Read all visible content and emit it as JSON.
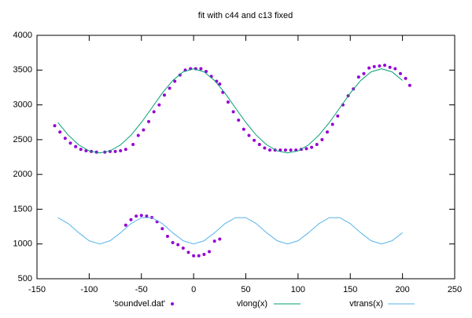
{
  "chart_data": {
    "type": "line",
    "title": "fit with c44 and c13 fixed",
    "xlim": [
      -150,
      250
    ],
    "xticks": [
      -150,
      -100,
      -50,
      0,
      50,
      100,
      150,
      200,
      250
    ],
    "ylim": [
      500,
      4000
    ],
    "yticks": [
      500,
      1000,
      1500,
      2000,
      2500,
      3000,
      3500,
      4000
    ],
    "grid": false,
    "legend": "bottom",
    "series": [
      {
        "name": "'soundvel.dat'",
        "color": "#9400d3",
        "mode": "points",
        "x": [
          -133,
          -128,
          -123,
          -118,
          -113,
          -108,
          -103,
          -98,
          -93,
          -85,
          -80,
          -75,
          -70,
          -65,
          -58,
          -53,
          -48,
          -43,
          -38,
          -33,
          -28,
          -23,
          -18,
          -13,
          -8,
          -3,
          2,
          7,
          12,
          17,
          22,
          25,
          28,
          33,
          38,
          43,
          48,
          53,
          58,
          63,
          68,
          73,
          78,
          83,
          88,
          93,
          98,
          103,
          108,
          113,
          118,
          123,
          128,
          133,
          138,
          143,
          148,
          153,
          158,
          163,
          168,
          173,
          178,
          183,
          188,
          193,
          198,
          203,
          207,
          -65,
          -60,
          -55,
          -50,
          -45,
          -40,
          -35,
          -30,
          -25,
          -20,
          -15,
          -10,
          -5,
          0,
          5,
          10,
          15,
          20,
          25
        ],
        "values": [
          2700,
          2610,
          2520,
          2450,
          2400,
          2360,
          2340,
          2330,
          2320,
          2320,
          2330,
          2330,
          2340,
          2360,
          2430,
          2560,
          2640,
          2760,
          2900,
          3000,
          3140,
          3240,
          3340,
          3430,
          3500,
          3520,
          3520,
          3520,
          3480,
          3410,
          3340,
          3300,
          3180,
          3040,
          2900,
          2780,
          2650,
          2560,
          2490,
          2430,
          2380,
          2350,
          2350,
          2350,
          2350,
          2350,
          2350,
          2360,
          2370,
          2390,
          2430,
          2500,
          2610,
          2720,
          2840,
          3000,
          3130,
          3230,
          3400,
          3450,
          3530,
          3550,
          3560,
          3570,
          3540,
          3520,
          3450,
          3380,
          3280,
          1270,
          1350,
          1400,
          1410,
          1400,
          1380,
          1320,
          1220,
          1110,
          1020,
          990,
          940,
          880,
          830,
          830,
          850,
          890,
          1040,
          1070
        ]
      },
      {
        "name": "vlong(x)",
        "color": "#009e73",
        "mode": "lines",
        "x": [
          -130,
          -120,
          -110,
          -100,
          -90,
          -80,
          -70,
          -60,
          -50,
          -40,
          -30,
          -20,
          -10,
          0,
          10,
          20,
          30,
          40,
          50,
          60,
          70,
          80,
          90,
          100,
          110,
          120,
          130,
          140,
          150,
          160,
          170,
          180,
          190,
          200
        ],
        "values": [
          2747,
          2564,
          2425,
          2338,
          2309,
          2338,
          2425,
          2564,
          2747,
          2957,
          3169,
          3351,
          3475,
          3519,
          3475,
          3351,
          3169,
          2957,
          2747,
          2564,
          2425,
          2338,
          2309,
          2338,
          2425,
          2564,
          2747,
          2957,
          3169,
          3351,
          3475,
          3519,
          3475,
          3351
        ]
      },
      {
        "name": "vtrans(x)",
        "color": "#56b4e9",
        "mode": "lines",
        "x": [
          -130,
          -120,
          -110,
          -100,
          -90,
          -80,
          -70,
          -60,
          -50,
          -40,
          -30,
          -20,
          -10,
          0,
          10,
          20,
          30,
          40,
          50,
          60,
          70,
          80,
          90,
          100,
          110,
          120,
          130,
          140,
          150,
          160,
          170,
          180,
          190,
          200
        ],
        "values": [
          1378,
          1293,
          1161,
          1046,
          1000,
          1046,
          1161,
          1293,
          1378,
          1378,
          1293,
          1161,
          1046,
          1000,
          1046,
          1161,
          1293,
          1378,
          1378,
          1293,
          1161,
          1046,
          1000,
          1046,
          1161,
          1293,
          1378,
          1378,
          1293,
          1161,
          1046,
          1000,
          1046,
          1161
        ]
      }
    ]
  }
}
